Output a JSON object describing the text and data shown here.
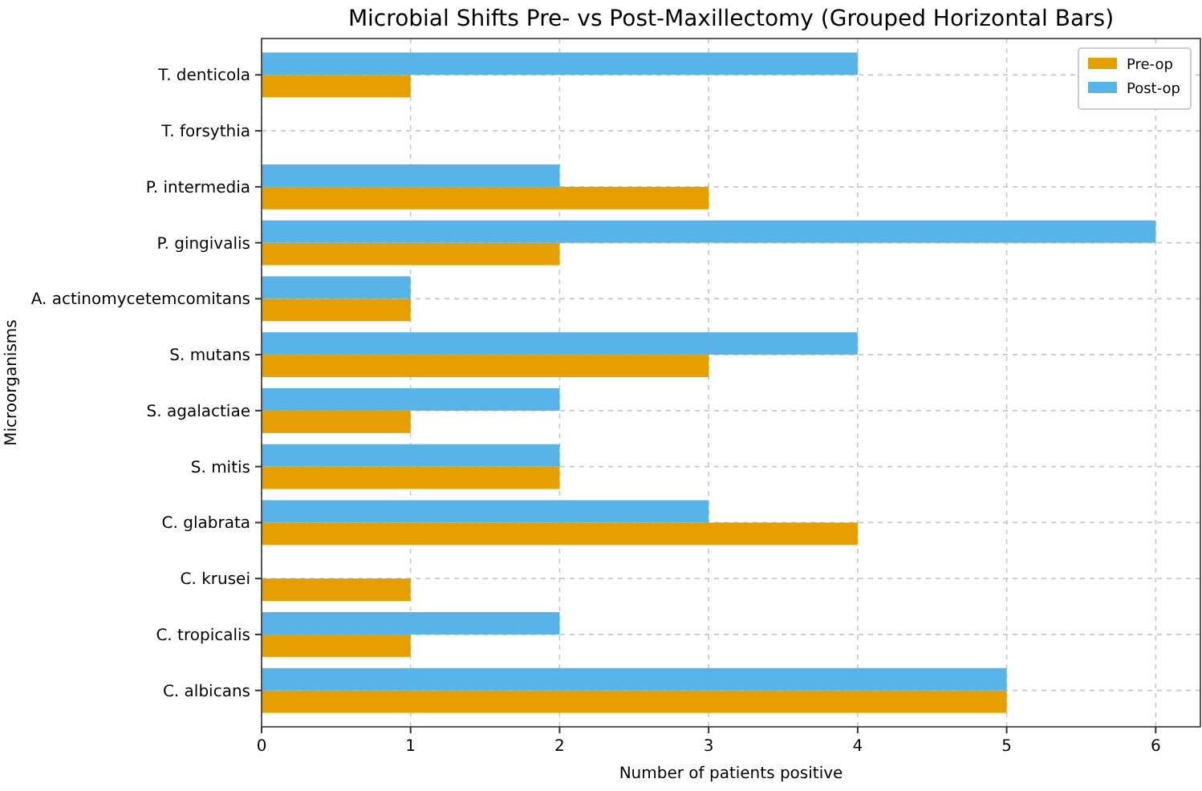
{
  "chart_data": {
    "type": "bar",
    "orientation": "horizontal",
    "title": "Microbial Shifts Pre- vs Post-Maxillectomy (Grouped Horizontal Bars)",
    "xlabel": "Number of patients positive",
    "ylabel": "Microorganisms",
    "categories": [
      "T. denticola",
      "T. forsythia",
      "P. intermedia",
      "P. gingivalis",
      "A. actinomycetemcomitans",
      "S. mutans",
      "S. agalactiae",
      "S. mitis",
      "C. glabrata",
      "C. krusei",
      "C. tropicalis",
      "C. albicans"
    ],
    "series": [
      {
        "name": "Pre-op",
        "color": "#e69f00",
        "values": [
          1,
          0,
          3,
          2,
          1,
          3,
          1,
          2,
          4,
          1,
          1,
          5
        ]
      },
      {
        "name": "Post-op",
        "color": "#56b4e9",
        "values": [
          4,
          0,
          2,
          6,
          1,
          4,
          2,
          2,
          3,
          0,
          2,
          5
        ]
      }
    ],
    "xlim": [
      0,
      6.3
    ],
    "xticks": [
      0,
      1,
      2,
      3,
      4,
      5,
      6
    ],
    "grid": true,
    "legend": "top right"
  }
}
